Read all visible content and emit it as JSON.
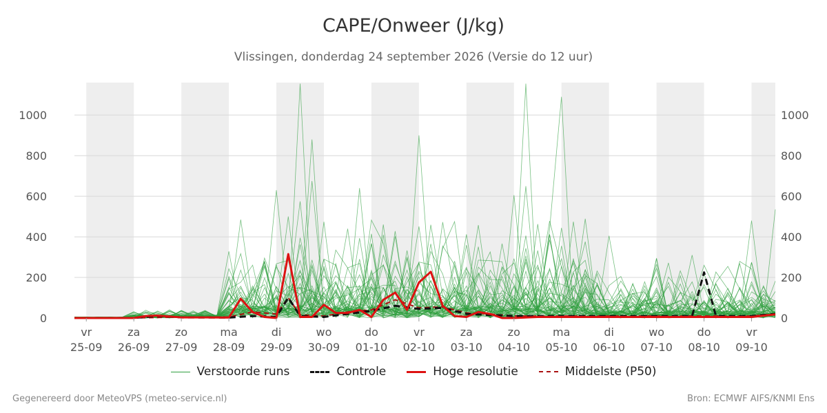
{
  "chart_data": {
    "type": "line",
    "title": "CAPE/Onweer (J/kg)",
    "subtitle": "Vlissingen, donderdag 24 september 2026 (Versie do 12 uur)",
    "ylim": [
      0,
      1160
    ],
    "yticks": [
      0,
      200,
      400,
      600,
      800,
      1000
    ],
    "xlim": [
      -0.25,
      14.5
    ],
    "xticks": [
      {
        "day": "vr",
        "date": "25-09"
      },
      {
        "day": "za",
        "date": "26-09"
      },
      {
        "day": "zo",
        "date": "27-09"
      },
      {
        "day": "ma",
        "date": "28-09"
      },
      {
        "day": "di",
        "date": "29-09"
      },
      {
        "day": "wo",
        "date": "30-09"
      },
      {
        "day": "do",
        "date": "01-10"
      },
      {
        "day": "vr",
        "date": "02-10"
      },
      {
        "day": "za",
        "date": "03-10"
      },
      {
        "day": "zo",
        "date": "04-10"
      },
      {
        "day": "ma",
        "date": "05-10"
      },
      {
        "day": "di",
        "date": "06-10"
      },
      {
        "day": "wo",
        "date": "07-10"
      },
      {
        "day": "do",
        "date": "08-10"
      },
      {
        "day": "vr",
        "date": "09-10"
      }
    ],
    "shaded_days": [
      0,
      2,
      4,
      6,
      8,
      10,
      12,
      14
    ],
    "grid": true,
    "legend_position": "bottom",
    "colors": {
      "ensemble": "#2e9e3e",
      "control": "#111111",
      "hires": "#dd1111",
      "median": "#aa1111",
      "shade": "#eeeeee",
      "grid": "#d8d8d8"
    },
    "series": [
      {
        "name": "Hoge resolutie",
        "x": [
          -0.25,
          0,
          0.5,
          1,
          1.25,
          1.5,
          2,
          2.5,
          3,
          3.25,
          3.5,
          3.75,
          4,
          4.25,
          4.5,
          4.75,
          5,
          5.25,
          5.5,
          5.75,
          6,
          6.25,
          6.5,
          6.75,
          7,
          7.25,
          7.5,
          7.75,
          8,
          8.25,
          8.5,
          8.75,
          9,
          9.5,
          10,
          11,
          12,
          13,
          14,
          14.5
        ],
        "y": [
          0,
          0,
          0,
          0,
          10,
          12,
          3,
          3,
          2,
          95,
          30,
          5,
          0,
          315,
          5,
          5,
          65,
          25,
          25,
          40,
          5,
          90,
          125,
          40,
          175,
          228,
          60,
          10,
          5,
          30,
          20,
          0,
          0,
          5,
          5,
          5,
          5,
          5,
          5,
          18
        ]
      },
      {
        "name": "Controle",
        "x": [
          -0.25,
          1,
          1.5,
          2,
          3,
          3.5,
          4,
          4.25,
          4.5,
          5,
          5.5,
          6,
          6.5,
          7,
          7.5,
          8,
          8.5,
          9,
          10,
          11,
          12,
          12.75,
          13,
          13.25,
          13.5,
          14,
          14.5
        ],
        "y": [
          0,
          0,
          10,
          3,
          2,
          10,
          5,
          100,
          10,
          5,
          20,
          35,
          60,
          45,
          50,
          20,
          15,
          10,
          10,
          10,
          10,
          10,
          225,
          10,
          10,
          10,
          20
        ]
      },
      {
        "name": "Middelste (P50)",
        "x": [
          -0.25,
          1,
          2,
          3,
          3.5,
          4,
          4.25,
          4.5,
          5,
          5.5,
          6,
          6.5,
          7,
          7.5,
          8,
          8.5,
          9,
          10,
          11,
          12,
          13,
          14,
          14.5
        ],
        "y": [
          0,
          0,
          5,
          5,
          30,
          20,
          100,
          15,
          10,
          30,
          40,
          90,
          50,
          55,
          25,
          20,
          10,
          10,
          10,
          10,
          10,
          10,
          20
        ]
      },
      {
        "name": "Verstoorde runs",
        "peaks": [
          {
            "x": 4.5,
            "y": 1155
          },
          {
            "x": 4.75,
            "y": 880
          },
          {
            "x": 9.25,
            "y": 1155
          },
          {
            "x": 10.0,
            "y": 1090
          },
          {
            "x": 7.0,
            "y": 900
          },
          {
            "x": 9.25,
            "y": 650
          },
          {
            "x": 5.75,
            "y": 640
          },
          {
            "x": 4.0,
            "y": 630
          },
          {
            "x": 4.75,
            "y": 675
          },
          {
            "x": 9.0,
            "y": 605
          },
          {
            "x": 14.5,
            "y": 535
          },
          {
            "x": 3.25,
            "y": 485
          },
          {
            "x": 10.25,
            "y": 475
          },
          {
            "x": 14.0,
            "y": 480
          },
          {
            "x": 11.0,
            "y": 405
          },
          {
            "x": 6.25,
            "y": 410
          },
          {
            "x": 12.0,
            "y": 295
          },
          {
            "x": 12.75,
            "y": 310
          },
          {
            "x": 7.5,
            "y": 355
          },
          {
            "x": 9.75,
            "y": 385
          },
          {
            "x": 4.5,
            "y": 575
          },
          {
            "x": 4.25,
            "y": 500
          },
          {
            "x": 5.5,
            "y": 440
          },
          {
            "x": 8.0,
            "y": 250
          }
        ]
      }
    ]
  },
  "legend": [
    {
      "label": "Verstoorde runs",
      "style": "ensemble"
    },
    {
      "label": "Controle",
      "style": "control"
    },
    {
      "label": "Hoge resolutie",
      "style": "hires"
    },
    {
      "label": "Middelste (P50)",
      "style": "median"
    }
  ],
  "footer": {
    "left": "Gegenereerd door MeteoVPS (meteo-service.nl)",
    "right": "Bron: ECMWF AIFS/KNMI Ens"
  }
}
